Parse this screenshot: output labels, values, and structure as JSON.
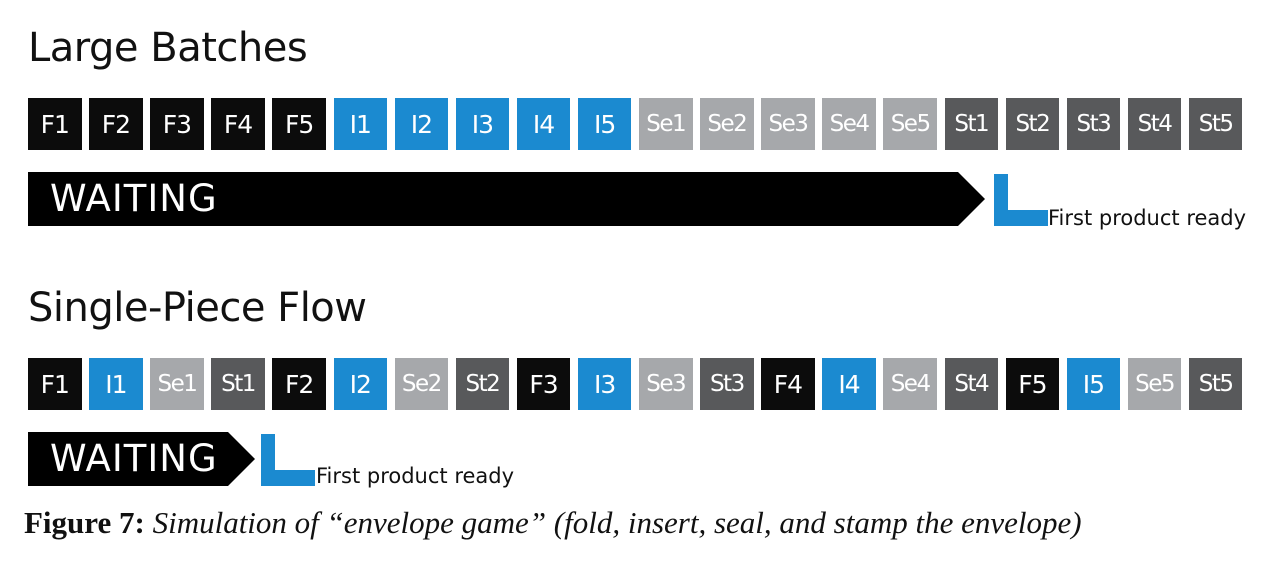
{
  "large_batches": {
    "title": "Large Batches",
    "steps": [
      {
        "label": "F1",
        "kind": "F"
      },
      {
        "label": "F2",
        "kind": "F"
      },
      {
        "label": "F3",
        "kind": "F"
      },
      {
        "label": "F4",
        "kind": "F"
      },
      {
        "label": "F5",
        "kind": "F"
      },
      {
        "label": "I1",
        "kind": "I"
      },
      {
        "label": "I2",
        "kind": "I"
      },
      {
        "label": "I3",
        "kind": "I"
      },
      {
        "label": "I4",
        "kind": "I"
      },
      {
        "label": "I5",
        "kind": "I"
      },
      {
        "label": "Se1",
        "kind": "Se"
      },
      {
        "label": "Se2",
        "kind": "Se"
      },
      {
        "label": "Se3",
        "kind": "Se"
      },
      {
        "label": "Se4",
        "kind": "Se"
      },
      {
        "label": "Se5",
        "kind": "Se"
      },
      {
        "label": "St1",
        "kind": "St"
      },
      {
        "label": "St2",
        "kind": "St"
      },
      {
        "label": "St3",
        "kind": "St"
      },
      {
        "label": "St4",
        "kind": "St"
      },
      {
        "label": "St5",
        "kind": "St"
      }
    ],
    "waiting_label": "WAITING",
    "ready_label": "First product ready"
  },
  "single_piece_flow": {
    "title": "Single-Piece Flow",
    "steps": [
      {
        "label": "F1",
        "kind": "F"
      },
      {
        "label": "I1",
        "kind": "I"
      },
      {
        "label": "Se1",
        "kind": "Se"
      },
      {
        "label": "St1",
        "kind": "St"
      },
      {
        "label": "F2",
        "kind": "F"
      },
      {
        "label": "I2",
        "kind": "I"
      },
      {
        "label": "Se2",
        "kind": "Se"
      },
      {
        "label": "St2",
        "kind": "St"
      },
      {
        "label": "F3",
        "kind": "F"
      },
      {
        "label": "I3",
        "kind": "I"
      },
      {
        "label": "Se3",
        "kind": "Se"
      },
      {
        "label": "St3",
        "kind": "St"
      },
      {
        "label": "F4",
        "kind": "F"
      },
      {
        "label": "I4",
        "kind": "I"
      },
      {
        "label": "Se4",
        "kind": "Se"
      },
      {
        "label": "St4",
        "kind": "St"
      },
      {
        "label": "F5",
        "kind": "F"
      },
      {
        "label": "I5",
        "kind": "I"
      },
      {
        "label": "Se5",
        "kind": "Se"
      },
      {
        "label": "St5",
        "kind": "St"
      }
    ],
    "waiting_label": "WAITING",
    "ready_label": "First product ready"
  },
  "caption": {
    "figure_label": "Figure 7:",
    "text": " Simulation of “envelope game” (fold, insert, seal, and stamp the envelope)"
  },
  "colors": {
    "fold": "#0c0c0c",
    "insert": "#1b8ad0",
    "seal": "#a6a8ab",
    "stamp": "#58595b",
    "waiting": "#000000",
    "ready_marker": "#1b8ad0"
  }
}
